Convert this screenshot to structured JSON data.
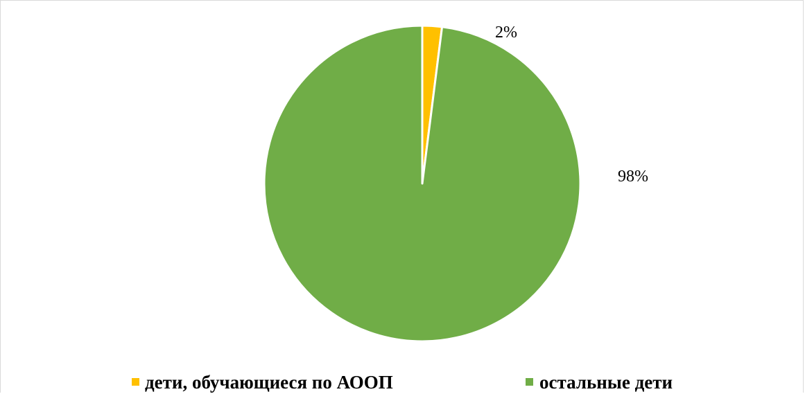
{
  "chart_data": {
    "type": "pie",
    "title": "",
    "categories": [
      "дети, обучающиеся по АООП",
      "остальные дети"
    ],
    "values": [
      2,
      98
    ],
    "data_labels": [
      "2%",
      "98%"
    ],
    "colors": [
      "#FFC000",
      "#70AD47"
    ],
    "legend": {
      "placement": "bottom",
      "entries": [
        "дети, обучающиеся по АООП",
        "остальные дети"
      ]
    }
  }
}
